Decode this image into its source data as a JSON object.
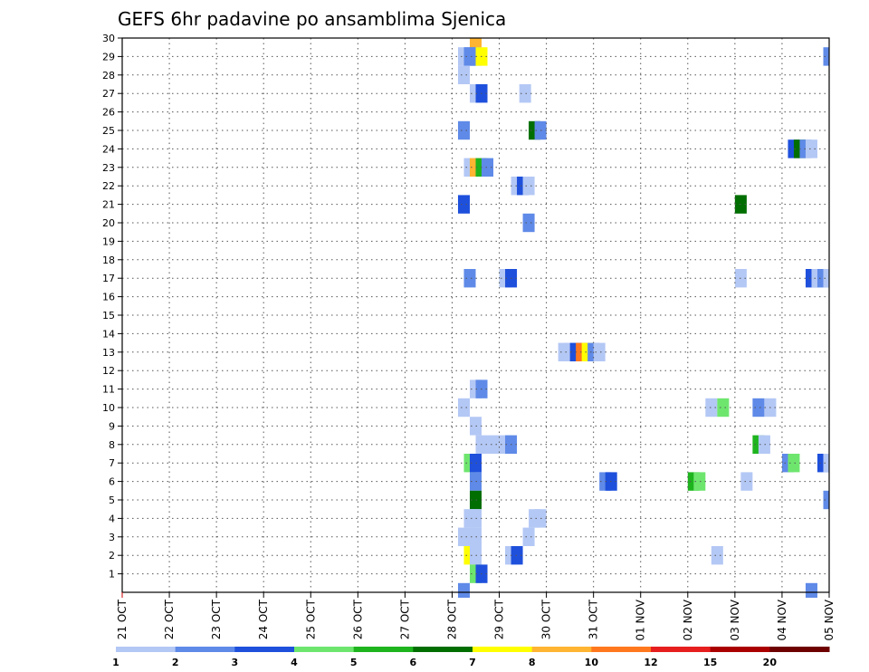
{
  "chart_data": {
    "type": "heatmap",
    "title": "GEFS 6hr padavine po ansamblima Sjenica",
    "x_tick_labels": [
      "21 OCT",
      "22 OCT",
      "23 OCT",
      "24 OCT",
      "25 OCT",
      "26 OCT",
      "27 OCT",
      "28 OCT",
      "29 OCT",
      "30 OCT",
      "31 OCT",
      "01 NOV",
      "02 NOV",
      "03 NOV",
      "04 NOV",
      "05 NOV"
    ],
    "x_unit": "6-hour step from 21 OCT 00",
    "xlim": [
      0,
      60
    ],
    "y_tick_labels": [
      "1",
      "2",
      "3",
      "4",
      "5",
      "6",
      "7",
      "8",
      "9",
      "10",
      "11",
      "12",
      "13",
      "14",
      "15",
      "16",
      "17",
      "18",
      "19",
      "20",
      "21",
      "22",
      "23",
      "24",
      "25",
      "26",
      "27",
      "28",
      "29",
      "30"
    ],
    "ylim": [
      0,
      30
    ],
    "grid": true,
    "colorbar": {
      "labels": [
        "1",
        "2",
        "3",
        "4",
        "5",
        "6",
        "7",
        "8",
        "10",
        "12",
        "15",
        "20"
      ],
      "colors": [
        "#b4c8f5",
        "#5f8ae8",
        "#1e50dc",
        "#6ee66e",
        "#1eb41e",
        "#006e00",
        "#ffff00",
        "#ffb432",
        "#ff781e",
        "#e61e1e",
        "#aa0000",
        "#6e0000"
      ]
    },
    "cells": [
      {
        "step": 29.5,
        "member": 29,
        "value": 2
      },
      {
        "step": 30,
        "member": 30,
        "value": 8
      },
      {
        "step": 29,
        "member": 29,
        "value": 1
      },
      {
        "step": 29.5,
        "member": 29,
        "value": 2
      },
      {
        "step": 30,
        "member": 29,
        "value": 2
      },
      {
        "step": 30.5,
        "member": 29,
        "value": 7
      },
      {
        "step": 60,
        "member": 29,
        "value": 2
      },
      {
        "step": 29,
        "member": 28,
        "value": 1
      },
      {
        "step": 30,
        "member": 27,
        "value": 1
      },
      {
        "step": 30.5,
        "member": 27,
        "value": 3
      },
      {
        "step": 34.2,
        "member": 27,
        "value": 1
      },
      {
        "step": 29,
        "member": 25,
        "value": 2
      },
      {
        "step": 35,
        "member": 25,
        "value": 6
      },
      {
        "step": 35.5,
        "member": 25,
        "value": 2
      },
      {
        "step": 57,
        "member": 24,
        "value": 3
      },
      {
        "step": 57.5,
        "member": 24,
        "value": 6
      },
      {
        "step": 58,
        "member": 24,
        "value": 2
      },
      {
        "step": 58.5,
        "member": 24,
        "value": 1
      },
      {
        "step": 29.5,
        "member": 23,
        "value": 1
      },
      {
        "step": 30,
        "member": 23,
        "value": 8
      },
      {
        "step": 30.5,
        "member": 23,
        "value": 5
      },
      {
        "step": 31,
        "member": 23,
        "value": 2
      },
      {
        "step": 33.5,
        "member": 22,
        "value": 1
      },
      {
        "step": 34,
        "member": 22,
        "value": 3
      },
      {
        "step": 34.5,
        "member": 22,
        "value": 1
      },
      {
        "step": 29,
        "member": 21,
        "value": 3
      },
      {
        "step": 52.5,
        "member": 21,
        "value": 6
      },
      {
        "step": 34.5,
        "member": 20,
        "value": 2
      },
      {
        "step": 29.5,
        "member": 17,
        "value": 2
      },
      {
        "step": 32.5,
        "member": 17,
        "value": 1
      },
      {
        "step": 33,
        "member": 17,
        "value": 3
      },
      {
        "step": 52.5,
        "member": 17,
        "value": 1
      },
      {
        "step": 58.5,
        "member": 17,
        "value": 3
      },
      {
        "step": 59,
        "member": 17,
        "value": 1
      },
      {
        "step": 59.5,
        "member": 17,
        "value": 2
      },
      {
        "step": 60,
        "member": 17,
        "value": 1
      },
      {
        "step": 37.5,
        "member": 13,
        "value": 1
      },
      {
        "step": 38,
        "member": 13,
        "value": 1
      },
      {
        "step": 38.5,
        "member": 13,
        "value": 3
      },
      {
        "step": 39,
        "member": 13,
        "value": 9
      },
      {
        "step": 39.5,
        "member": 13,
        "value": 7
      },
      {
        "step": 40,
        "member": 13,
        "value": 2
      },
      {
        "step": 40.5,
        "member": 13,
        "value": 1
      },
      {
        "step": 30,
        "member": 11,
        "value": 1
      },
      {
        "step": 30.5,
        "member": 11,
        "value": 2
      },
      {
        "step": 29,
        "member": 10,
        "value": 1
      },
      {
        "step": 50,
        "member": 10,
        "value": 1
      },
      {
        "step": 51,
        "member": 10,
        "value": 4
      },
      {
        "step": 54,
        "member": 10,
        "value": 2
      },
      {
        "step": 55,
        "member": 10,
        "value": 1
      },
      {
        "step": 30,
        "member": 9,
        "value": 1
      },
      {
        "step": 30.5,
        "member": 8,
        "value": 1
      },
      {
        "step": 31.5,
        "member": 8,
        "value": 1
      },
      {
        "step": 32.5,
        "member": 8,
        "value": 1
      },
      {
        "step": 33,
        "member": 8,
        "value": 2
      },
      {
        "step": 54,
        "member": 8,
        "value": 5
      },
      {
        "step": 54.5,
        "member": 8,
        "value": 1
      },
      {
        "step": 29.5,
        "member": 7,
        "value": 4
      },
      {
        "step": 30,
        "member": 7,
        "value": 3
      },
      {
        "step": 56.5,
        "member": 7,
        "value": 2
      },
      {
        "step": 57,
        "member": 7,
        "value": 4
      },
      {
        "step": 59.5,
        "member": 7,
        "value": 3
      },
      {
        "step": 60,
        "member": 7,
        "value": 1
      },
      {
        "step": 30,
        "member": 6,
        "value": 2
      },
      {
        "step": 41,
        "member": 6,
        "value": 2
      },
      {
        "step": 41.5,
        "member": 6,
        "value": 3
      },
      {
        "step": 48.5,
        "member": 6,
        "value": 5
      },
      {
        "step": 49,
        "member": 6,
        "value": 4
      },
      {
        "step": 53,
        "member": 6,
        "value": 1
      },
      {
        "step": 30,
        "member": 5,
        "value": 6
      },
      {
        "step": 60,
        "member": 5,
        "value": 2
      },
      {
        "step": 29.5,
        "member": 4,
        "value": 1
      },
      {
        "step": 30,
        "member": 4,
        "value": 1
      },
      {
        "step": 35,
        "member": 4,
        "value": 1
      },
      {
        "step": 35.5,
        "member": 4,
        "value": 1
      },
      {
        "step": 29,
        "member": 3,
        "value": 1
      },
      {
        "step": 30,
        "member": 3,
        "value": 1
      },
      {
        "step": 34.5,
        "member": 3,
        "value": 1
      },
      {
        "step": 29.5,
        "member": 2,
        "value": 7
      },
      {
        "step": 30,
        "member": 2,
        "value": 1
      },
      {
        "step": 33,
        "member": 2,
        "value": 1
      },
      {
        "step": 33.5,
        "member": 2,
        "value": 3
      },
      {
        "step": 50.5,
        "member": 2,
        "value": 1
      },
      {
        "step": 30,
        "member": 1,
        "value": 4
      },
      {
        "step": 30.5,
        "member": 1,
        "value": 3
      },
      {
        "step": 29,
        "member": 0,
        "value": 2
      },
      {
        "step": 58.5,
        "member": 0,
        "value": 2
      }
    ]
  }
}
